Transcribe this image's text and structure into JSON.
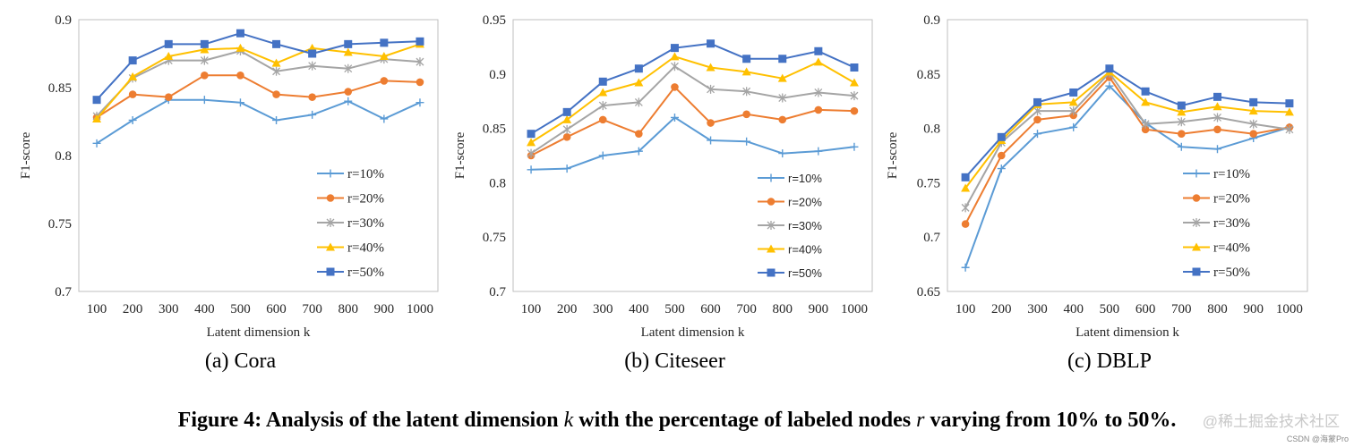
{
  "series_styles": [
    {
      "name": "r=10%",
      "color": "#5b9bd5",
      "marker": "plus"
    },
    {
      "name": "r=20%",
      "color": "#ed7d31",
      "marker": "circle"
    },
    {
      "name": "r=30%",
      "color": "#a5a5a5",
      "marker": "star"
    },
    {
      "name": "r=40%",
      "color": "#ffc000",
      "marker": "triangle"
    },
    {
      "name": "r=50%",
      "color": "#4472c4",
      "marker": "square"
    }
  ],
  "chart_data": [
    {
      "type": "line",
      "subcaption": "(a) Cora",
      "xlabel": "Latent dimension k",
      "ylabel": "F1-score",
      "categories": [
        "100",
        "200",
        "300",
        "400",
        "500",
        "600",
        "700",
        "800",
        "900",
        "1000"
      ],
      "ylim": [
        0.7,
        0.9
      ],
      "yticks": [
        "0.7",
        "0.75",
        "0.8",
        "0.85",
        "0.9"
      ],
      "ytick_values": [
        0.7,
        0.75,
        0.8,
        0.85,
        0.9
      ],
      "series": [
        {
          "name": "r=10%",
          "values": [
            0.809,
            0.826,
            0.841,
            0.841,
            0.839,
            0.826,
            0.83,
            0.84,
            0.827,
            0.839
          ]
        },
        {
          "name": "r=20%",
          "values": [
            0.828,
            0.845,
            0.843,
            0.859,
            0.859,
            0.845,
            0.843,
            0.847,
            0.855,
            0.854
          ]
        },
        {
          "name": "r=30%",
          "values": [
            0.829,
            0.857,
            0.87,
            0.87,
            0.877,
            0.862,
            0.866,
            0.864,
            0.871,
            0.869
          ]
        },
        {
          "name": "r=40%",
          "values": [
            0.827,
            0.858,
            0.873,
            0.878,
            0.879,
            0.868,
            0.879,
            0.876,
            0.873,
            0.882
          ]
        },
        {
          "name": "r=50%",
          "values": [
            0.841,
            0.87,
            0.882,
            0.882,
            0.89,
            0.882,
            0.875,
            0.882,
            0.883,
            0.884
          ]
        }
      ]
    },
    {
      "type": "line",
      "subcaption": "(b) Citeseer",
      "xlabel": "Latent dimension k",
      "ylabel": "F1-score",
      "categories": [
        "100",
        "200",
        "300",
        "400",
        "500",
        "600",
        "700",
        "800",
        "900",
        "1000"
      ],
      "ylim": [
        0.7,
        0.95
      ],
      "yticks": [
        "0.7",
        "0.75",
        "0.8",
        "0.85",
        "0.9",
        "0.95"
      ],
      "ytick_values": [
        0.7,
        0.75,
        0.8,
        0.85,
        0.9,
        0.95
      ],
      "series": [
        {
          "name": "r=10%",
          "values": [
            0.812,
            0.813,
            0.825,
            0.829,
            0.86,
            0.839,
            0.838,
            0.827,
            0.829,
            0.833
          ]
        },
        {
          "name": "r=20%",
          "values": [
            0.825,
            0.842,
            0.858,
            0.845,
            0.888,
            0.855,
            0.863,
            0.858,
            0.867,
            0.866
          ]
        },
        {
          "name": "r=30%",
          "values": [
            0.827,
            0.849,
            0.871,
            0.874,
            0.907,
            0.886,
            0.884,
            0.878,
            0.883,
            0.88
          ]
        },
        {
          "name": "r=40%",
          "values": [
            0.837,
            0.858,
            0.883,
            0.892,
            0.916,
            0.906,
            0.902,
            0.896,
            0.911,
            0.892
          ]
        },
        {
          "name": "r=50%",
          "values": [
            0.845,
            0.865,
            0.893,
            0.905,
            0.924,
            0.928,
            0.914,
            0.914,
            0.921,
            0.906
          ]
        }
      ]
    },
    {
      "type": "line",
      "subcaption": "(c) DBLP",
      "xlabel": "Latent dimension k",
      "ylabel": "F1-score",
      "categories": [
        "100",
        "200",
        "300",
        "400",
        "500",
        "600",
        "700",
        "800",
        "900",
        "1000"
      ],
      "ylim": [
        0.65,
        0.9
      ],
      "yticks": [
        "0.65",
        "0.7",
        "0.75",
        "0.8",
        "0.85",
        "0.9"
      ],
      "ytick_values": [
        0.65,
        0.7,
        0.75,
        0.8,
        0.85,
        0.9
      ],
      "series": [
        {
          "name": "r=10%",
          "values": [
            0.672,
            0.763,
            0.795,
            0.801,
            0.839,
            0.805,
            0.783,
            0.781,
            0.791,
            0.801
          ]
        },
        {
          "name": "r=20%",
          "values": [
            0.712,
            0.775,
            0.808,
            0.812,
            0.847,
            0.799,
            0.795,
            0.799,
            0.795,
            0.801
          ]
        },
        {
          "name": "r=30%",
          "values": [
            0.727,
            0.787,
            0.816,
            0.816,
            0.851,
            0.804,
            0.806,
            0.81,
            0.804,
            0.799
          ]
        },
        {
          "name": "r=40%",
          "values": [
            0.745,
            0.789,
            0.822,
            0.824,
            0.852,
            0.824,
            0.815,
            0.82,
            0.816,
            0.815
          ]
        },
        {
          "name": "r=50%",
          "values": [
            0.755,
            0.792,
            0.824,
            0.833,
            0.855,
            0.834,
            0.821,
            0.829,
            0.824,
            0.823
          ]
        }
      ]
    }
  ],
  "figure_caption": "Figure 4: Analysis of the latent dimension k with the percentage of labeled nodes r varying from 10% to 50%.",
  "watermark": "@稀土掘金技术社区",
  "watermark2": "CSDN @海蒙Pro"
}
